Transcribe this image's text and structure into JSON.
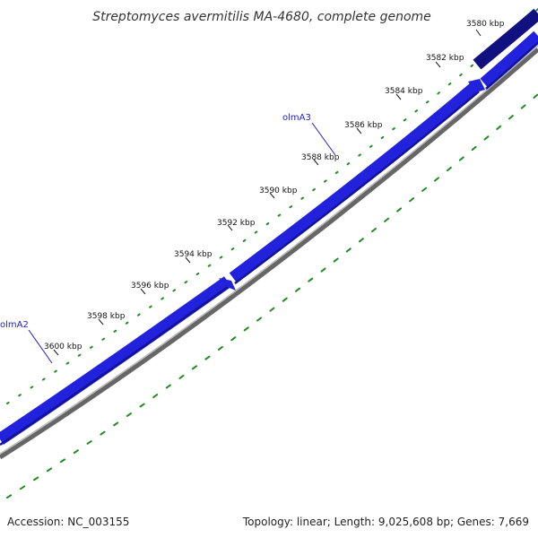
{
  "title": "Streptomyces avermitilis MA-4680, complete genome",
  "footer": {
    "accession": "Accession: NC_003155",
    "summary": "Topology: linear; Length: 9,025,608 bp; Genes: 7,669"
  },
  "map": {
    "ticks": [
      {
        "label": "3580 kbp"
      },
      {
        "label": "3582 kbp"
      },
      {
        "label": "3584 kbp"
      },
      {
        "label": "3586 kbp"
      },
      {
        "label": "3588 kbp"
      },
      {
        "label": "3590 kbp"
      },
      {
        "label": "3592 kbp"
      },
      {
        "label": "3594 kbp"
      },
      {
        "label": "3596 kbp"
      },
      {
        "label": "3598 kbp"
      },
      {
        "label": "3600 kbp"
      }
    ],
    "genes": [
      {
        "label": "olmA3"
      },
      {
        "label": "olmA2"
      }
    ]
  },
  "colors": {
    "forward_gene": "#2222dd",
    "forward_gene_dark": "#101080",
    "backbone": "#666666",
    "gc_skew": "#228b22",
    "gene_label": "#1c1cc8"
  }
}
